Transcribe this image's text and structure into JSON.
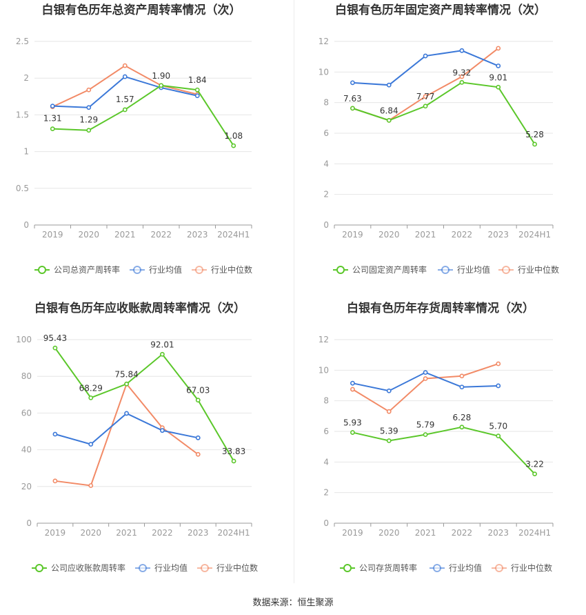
{
  "footer": "数据来源：恒生聚源",
  "colors": {
    "company": "#5bc72a",
    "avg": "#3b78d8",
    "median": "#f28a66",
    "grid": "#e6e6e6",
    "axis": "#999999",
    "text": "#333333"
  },
  "chart_data": [
    {
      "type": "line",
      "title": "白银有色历年总资产周转率情况（次）",
      "categories": [
        "2019",
        "2020",
        "2021",
        "2022",
        "2023",
        "2024H1"
      ],
      "yticks": [
        "0",
        "0.5",
        "1",
        "1.5",
        "2",
        "2.5"
      ],
      "ylim": [
        0,
        2.5
      ],
      "grid": true,
      "legend_position": "bottom",
      "series": [
        {
          "name": "公司总资产周转率",
          "key": "company",
          "values": [
            1.31,
            1.29,
            1.57,
            1.9,
            1.84,
            1.08
          ],
          "labels": [
            "1.31",
            "1.29",
            "1.57",
            "1.90",
            "1.84",
            "1.08"
          ]
        },
        {
          "name": "行业均值",
          "key": "avg",
          "values": [
            1.62,
            1.6,
            2.02,
            1.87,
            1.76,
            null
          ]
        },
        {
          "name": "行业中位数",
          "key": "median",
          "values": [
            1.61,
            1.84,
            2.17,
            1.9,
            1.78,
            null
          ]
        }
      ]
    },
    {
      "type": "line",
      "title": "白银有色历年固定资产周转率情况（次）",
      "categories": [
        "2019",
        "2020",
        "2021",
        "2022",
        "2023",
        "2024H1"
      ],
      "yticks": [
        "0",
        "2",
        "4",
        "6",
        "8",
        "10",
        "12"
      ],
      "ylim": [
        0,
        12
      ],
      "grid": true,
      "legend_position": "bottom",
      "series": [
        {
          "name": "公司固定资产周转率",
          "key": "company",
          "values": [
            7.63,
            6.84,
            7.77,
            9.32,
            9.01,
            5.28
          ],
          "labels": [
            "7.63",
            "6.84",
            "7.77",
            "9.32",
            "9.01",
            "5.28"
          ]
        },
        {
          "name": "行业均值",
          "key": "avg",
          "values": [
            9.3,
            9.15,
            11.05,
            11.4,
            10.4,
            null
          ]
        },
        {
          "name": "行业中位数",
          "key": "median",
          "values": [
            7.63,
            6.84,
            8.4,
            9.7,
            11.55,
            null
          ]
        }
      ]
    },
    {
      "type": "line",
      "title": "白银有色历年应收账款周转率情况（次）",
      "categories": [
        "2019",
        "2020",
        "2021",
        "2022",
        "2023",
        "2024H1"
      ],
      "yticks": [
        "0",
        "20",
        "40",
        "60",
        "80",
        "100"
      ],
      "ylim": [
        0,
        100
      ],
      "grid": true,
      "legend_position": "bottom",
      "series": [
        {
          "name": "公司应收账款周转率",
          "key": "company",
          "values": [
            95.43,
            68.29,
            75.84,
            92.01,
            67.03,
            33.83
          ],
          "labels": [
            "95.43",
            "68.29",
            "75.84",
            "92.01",
            "67.03",
            "33.83"
          ]
        },
        {
          "name": "行业均值",
          "key": "avg",
          "values": [
            48.5,
            43.0,
            59.8,
            50.5,
            46.5,
            null
          ]
        },
        {
          "name": "行业中位数",
          "key": "median",
          "values": [
            23.0,
            20.5,
            75.84,
            52.0,
            37.5,
            null
          ]
        }
      ]
    },
    {
      "type": "line",
      "title": "白银有色历年存货周转率情况（次）",
      "categories": [
        "2019",
        "2020",
        "2021",
        "2022",
        "2023",
        "2024H1"
      ],
      "yticks": [
        "0",
        "2",
        "4",
        "6",
        "8",
        "10",
        "12"
      ],
      "ylim": [
        0,
        12
      ],
      "grid": true,
      "legend_position": "bottom",
      "series": [
        {
          "name": "公司存货周转率",
          "key": "company",
          "values": [
            5.93,
            5.39,
            5.79,
            6.28,
            5.7,
            3.22
          ],
          "labels": [
            "5.93",
            "5.39",
            "5.79",
            "6.28",
            "5.70",
            "3.22"
          ]
        },
        {
          "name": "行业均值",
          "key": "avg",
          "values": [
            9.15,
            8.65,
            9.85,
            8.9,
            8.98,
            null
          ]
        },
        {
          "name": "行业中位数",
          "key": "median",
          "values": [
            8.75,
            7.3,
            9.45,
            9.62,
            10.42,
            null
          ]
        }
      ]
    }
  ]
}
